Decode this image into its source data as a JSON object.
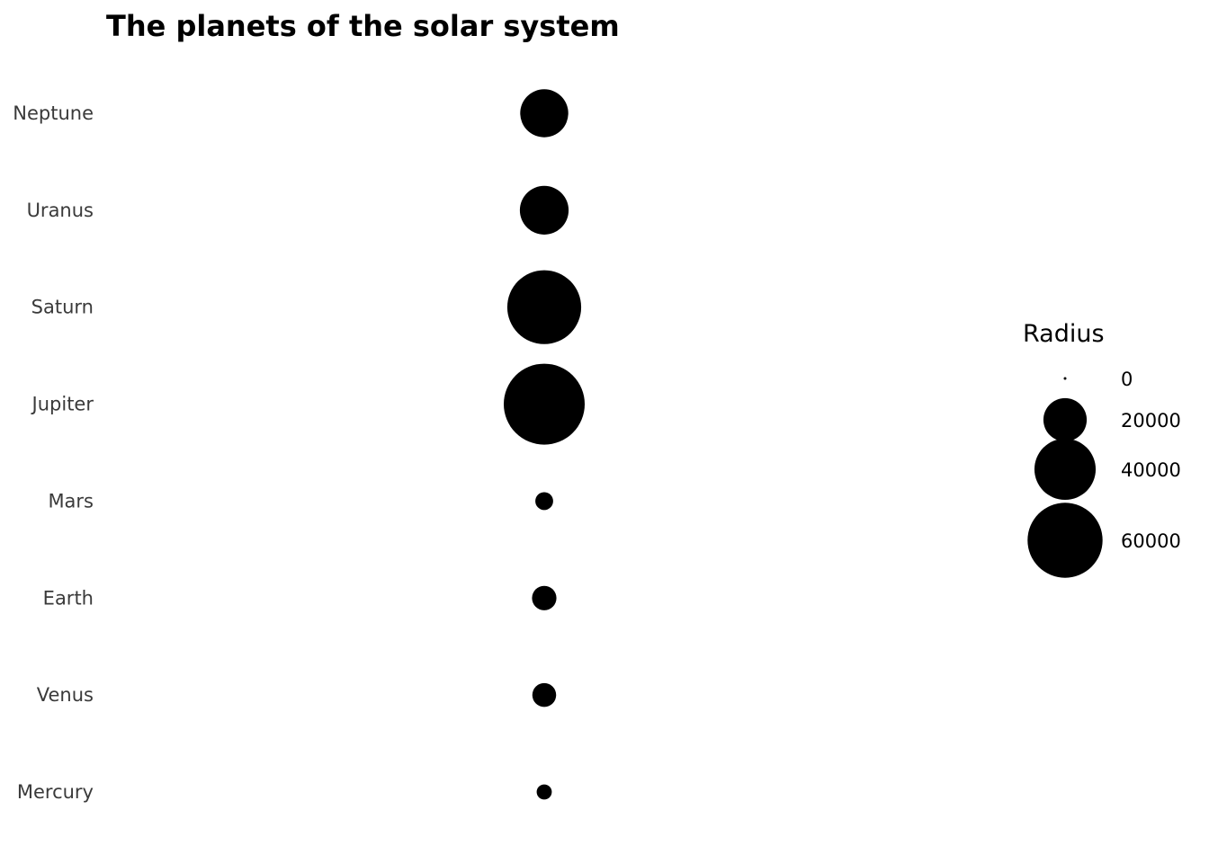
{
  "chart_data": {
    "type": "scatter",
    "title": "The planets of the solar system",
    "xlabel": "",
    "ylabel": "",
    "grid": false,
    "size_variable": "Radius",
    "categories": [
      "Mercury",
      "Venus",
      "Earth",
      "Mars",
      "Jupiter",
      "Saturn",
      "Uranus",
      "Neptune"
    ],
    "values": [
      2440,
      6052,
      6371,
      3390,
      69911,
      58232,
      25362,
      24622
    ],
    "point_color": "#000000",
    "legend": {
      "title": "Radius",
      "position": "right",
      "breaks": [
        0,
        20000,
        40000,
        60000
      ],
      "labels": [
        "0",
        "20000",
        "40000",
        "60000"
      ]
    }
  }
}
